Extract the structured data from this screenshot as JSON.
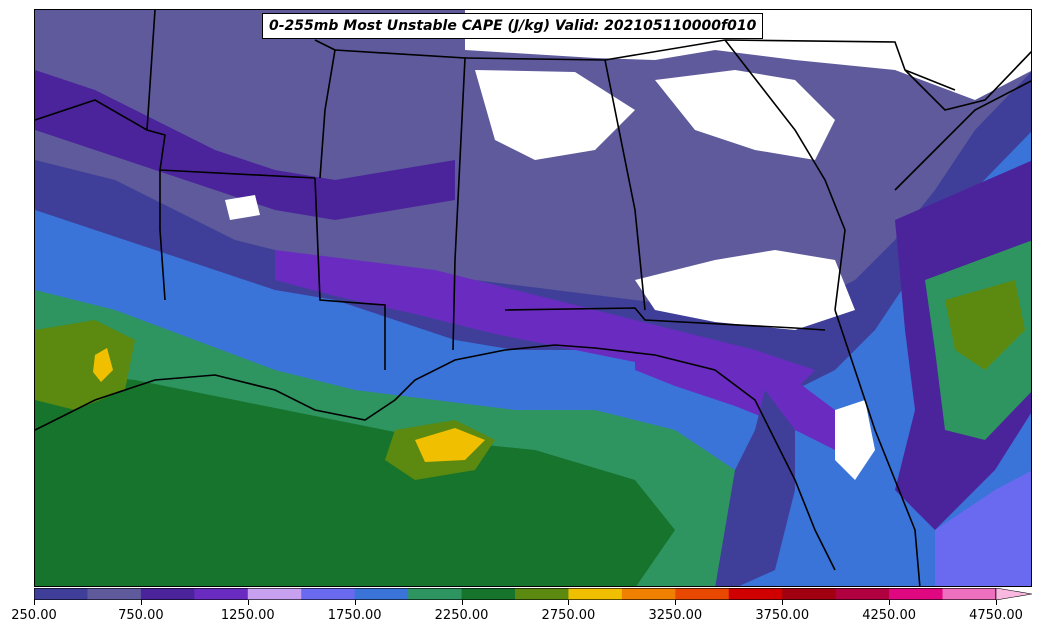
{
  "title": "0-255mb Most Unstable CAPE (J/kg) Valid: 202105110000f010",
  "colorbar": {
    "levels": [
      250,
      500,
      750,
      1000,
      1250,
      1500,
      1750,
      2000,
      2250,
      2500,
      2750,
      3000,
      3250,
      3500,
      3750,
      4000,
      4250,
      4500,
      4750,
      5000
    ],
    "colors": [
      "#3f3f9a",
      "#5e5a9c",
      "#4b249c",
      "#6a2cc0",
      "#c8a0f0",
      "#6a6af0",
      "#3a74d8",
      "#2e9460",
      "#16742c",
      "#5c8a10",
      "#f0c000",
      "#f08000",
      "#e84800",
      "#d00000",
      "#a00010",
      "#b00040",
      "#e00880",
      "#f070c0",
      "#f8b8e0"
    ],
    "extend": "max",
    "tick_labels": [
      "250.00",
      "750.00",
      "1250.00",
      "1750.00",
      "2250.00",
      "2750.00",
      "3250.00",
      "3750.00",
      "4250.00",
      "4750.00"
    ]
  },
  "map": {
    "region": "Southeastern United States and northern Gulf of Mexico",
    "boundaries": [
      "state lines",
      "coastlines"
    ]
  }
}
